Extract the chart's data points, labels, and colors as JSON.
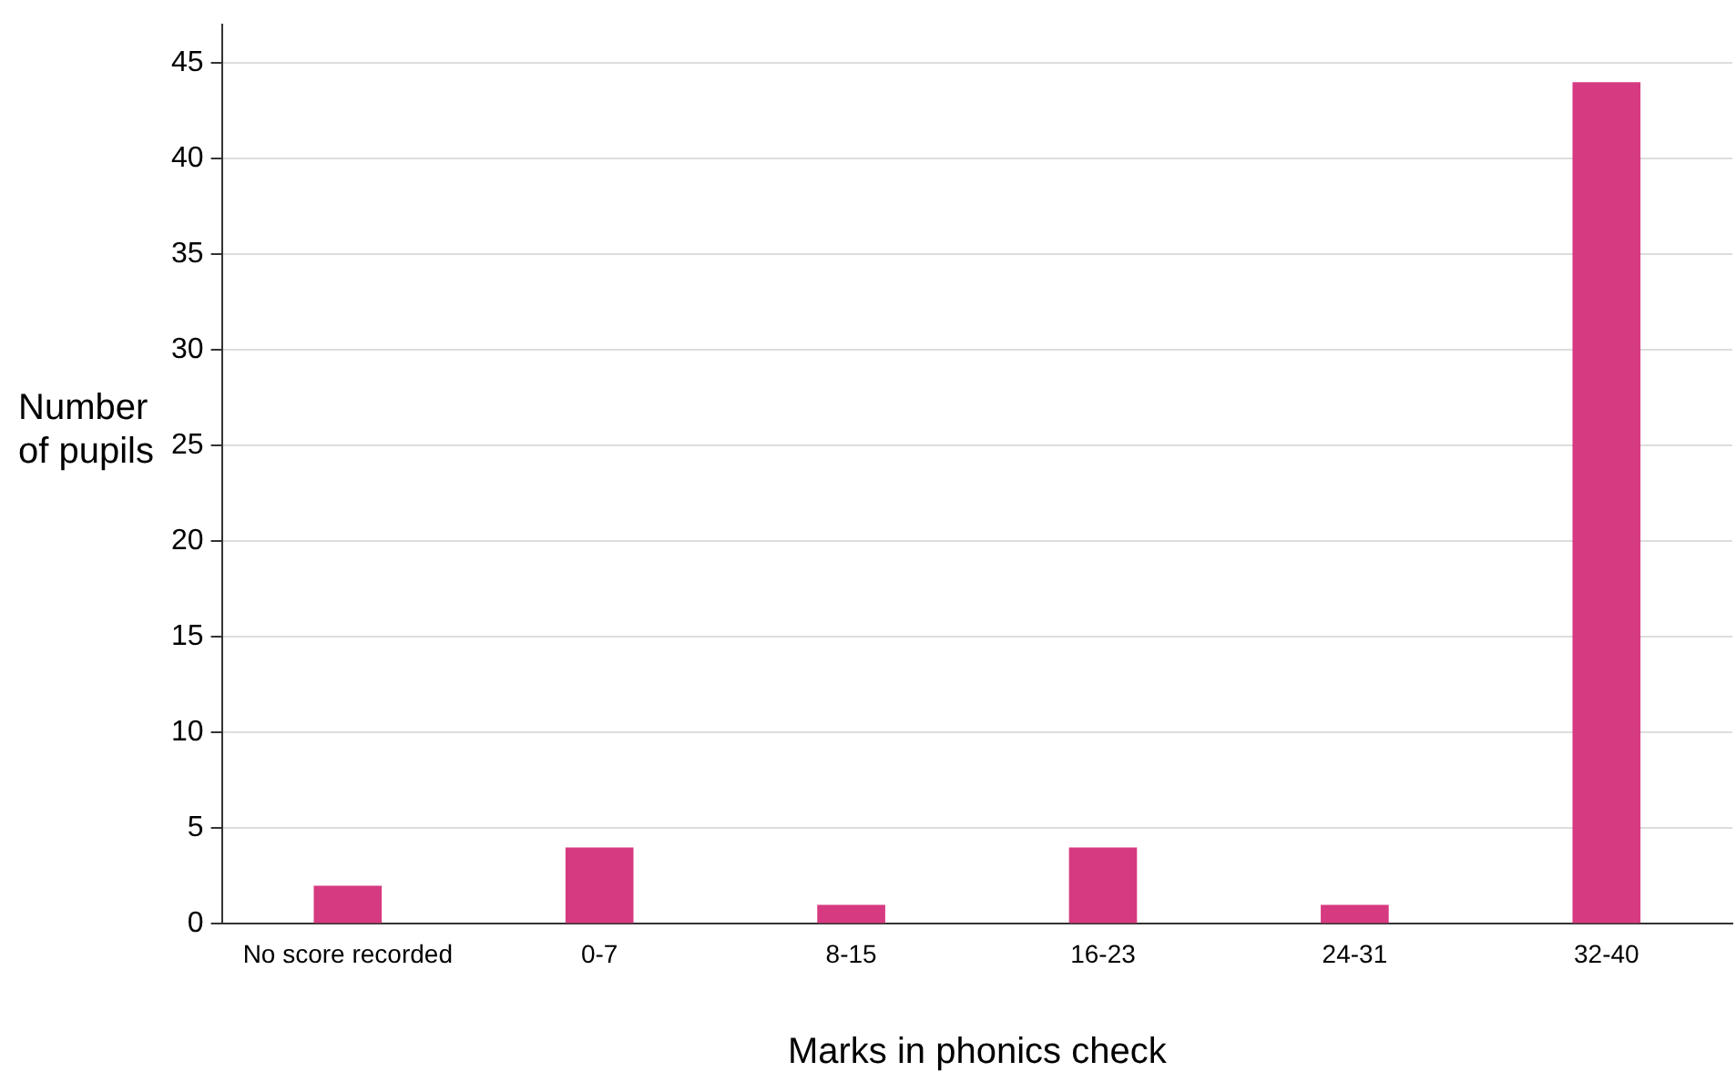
{
  "chart_data": {
    "type": "bar",
    "xlabel": "Marks in phonics check",
    "ylabel": "Number of pupils",
    "categories": [
      "No score recorded",
      "0-7",
      "8-15",
      "16-23",
      "24-31",
      "32-40"
    ],
    "values": [
      2,
      4,
      1,
      4,
      1,
      44
    ],
    "color": "#d63a80",
    "ylim": [
      0,
      47
    ],
    "yticks": [
      0,
      5,
      10,
      15,
      20,
      25,
      30,
      35,
      40,
      45
    ],
    "grid": "y",
    "legend": false
  }
}
